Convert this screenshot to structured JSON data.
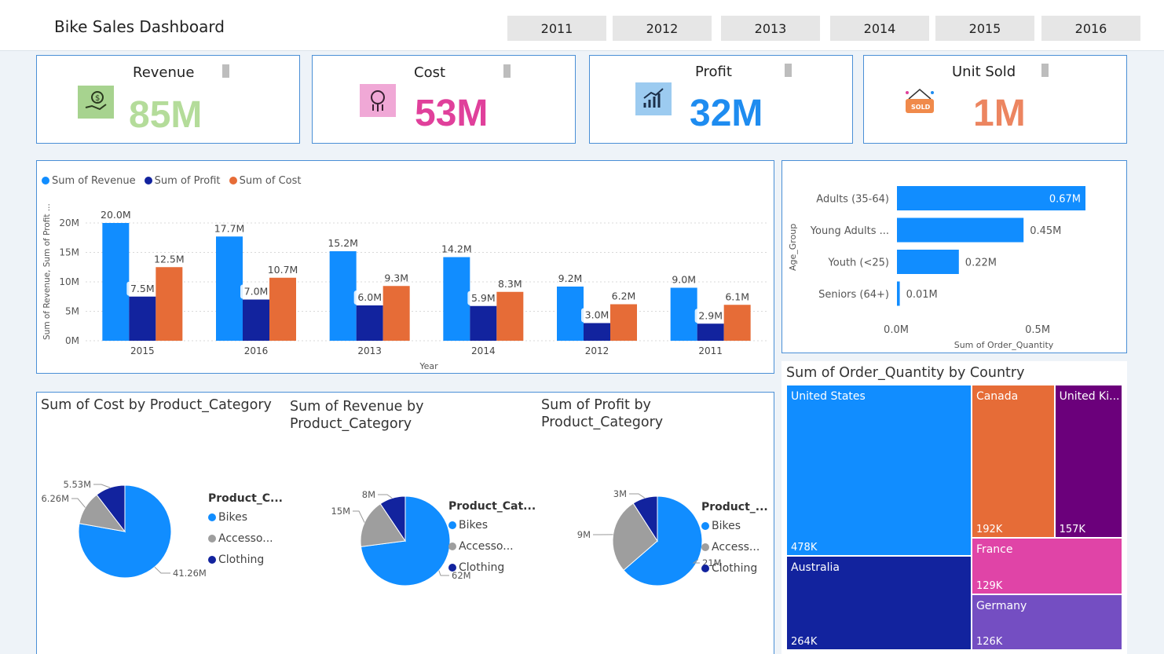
{
  "header": {
    "title": "Bike Sales Dashboard",
    "years": [
      "2011",
      "2012",
      "2013",
      "2014",
      "2015",
      "2016"
    ]
  },
  "kpis": [
    {
      "label": "Revenue",
      "value": "85M",
      "color": "#b4dc9a",
      "icon": "money-hand-icon",
      "icon_bg": "#a7d38f"
    },
    {
      "label": "Cost",
      "value": "53M",
      "color": "#e0409b",
      "icon": "coin-cost-icon",
      "icon_bg": "#f0a8d6"
    },
    {
      "label": "Profit",
      "value": "32M",
      "color": "#1e8cf0",
      "icon": "profit-chart-icon",
      "icon_bg": "#9ccbf0"
    },
    {
      "label": "Unit Sold",
      "value": "1M",
      "color": "#ec8560",
      "icon": "sold-tag-icon",
      "icon_bg": "#ffffff"
    }
  ],
  "chart_data": [
    {
      "type": "bar",
      "title": "",
      "legend": [
        "Sum of Revenue",
        "Sum of Profit",
        "Sum of Cost"
      ],
      "xlabel": "Year",
      "ylabel": "Sum of Revenue, Sum of Profit ...",
      "categories": [
        "2015",
        "2016",
        "2013",
        "2014",
        "2012",
        "2011"
      ],
      "ylim": [
        0,
        20000000
      ],
      "yticks": [
        "0M",
        "5M",
        "10M",
        "15M",
        "20M"
      ],
      "series": [
        {
          "name": "Sum of Revenue",
          "color": "#118dff",
          "values": [
            20.0,
            17.7,
            15.2,
            14.2,
            9.2,
            9.0
          ],
          "labels": [
            "20.0M",
            "17.7M",
            "15.2M",
            "14.2M",
            "9.2M",
            "9.0M"
          ]
        },
        {
          "name": "Sum of Profit",
          "color": "#12239e",
          "values": [
            7.5,
            7.0,
            6.0,
            5.9,
            3.0,
            2.9
          ],
          "labels": [
            "7.5M",
            "7.0M",
            "6.0M",
            "5.9M",
            "3.0M",
            "2.9M"
          ]
        },
        {
          "name": "Sum of Cost",
          "color": "#e66c37",
          "values": [
            12.5,
            10.7,
            9.3,
            8.3,
            6.2,
            6.1
          ],
          "labels": [
            "12.5M",
            "10.7M",
            "9.3M",
            "8.3M",
            "6.2M",
            "6.1M"
          ]
        }
      ]
    },
    {
      "type": "bar",
      "orientation": "horizontal",
      "xlabel": "Sum of Order_Quantity",
      "ylabel": "Age_Group",
      "categories": [
        "Adults (35-64)",
        "Young Adults ...",
        "Youth (<25)",
        "Seniors (64+)"
      ],
      "values": [
        0.67,
        0.45,
        0.22,
        0.01
      ],
      "labels": [
        "0.67M",
        "0.45M",
        "0.22M",
        "0.01M"
      ],
      "xticks": [
        "0.0M",
        "0.5M"
      ],
      "xlim": [
        0,
        0.67
      ],
      "color": "#118dff"
    },
    {
      "type": "pie",
      "title": "Sum of Cost by Product_Category",
      "legend_title": "Product_C...",
      "categories": [
        "Bikes",
        "Accesso...",
        "Clothing"
      ],
      "values": [
        41.26,
        6.26,
        5.53
      ],
      "labels": [
        "41.26M",
        "6.26M",
        "5.53M"
      ],
      "colors": [
        "#118dff",
        "#9e9e9e",
        "#12239e"
      ]
    },
    {
      "type": "pie",
      "title": "Sum of Revenue by Product_Category",
      "legend_title": "Product_Cat...",
      "categories": [
        "Bikes",
        "Accesso...",
        "Clothing"
      ],
      "values": [
        62,
        15,
        8
      ],
      "labels": [
        "62M",
        "15M",
        "8M"
      ],
      "colors": [
        "#118dff",
        "#9e9e9e",
        "#12239e"
      ]
    },
    {
      "type": "pie",
      "title": "Sum of Profit by Product_Category",
      "legend_title": "Product_...",
      "categories": [
        "Bikes",
        "Access...",
        "Clothing"
      ],
      "values": [
        21,
        9,
        3
      ],
      "labels": [
        "21M",
        "9M",
        "3M"
      ],
      "colors": [
        "#118dff",
        "#9e9e9e",
        "#12239e"
      ]
    },
    {
      "type": "treemap",
      "title": "Sum of Order_Quantity by Country",
      "items": [
        {
          "name": "United States",
          "label": "478K",
          "value": 478,
          "color": "#118dff"
        },
        {
          "name": "Australia",
          "label": "264K",
          "value": 264,
          "color": "#12239e"
        },
        {
          "name": "Canada",
          "label": "192K",
          "value": 192,
          "color": "#e66c37"
        },
        {
          "name": "United Ki...",
          "label": "157K",
          "value": 157,
          "color": "#6b007b"
        },
        {
          "name": "France",
          "label": "129K",
          "value": 129,
          "color": "#e044a7"
        },
        {
          "name": "Germany",
          "label": "126K",
          "value": 126,
          "color": "#744ec2"
        }
      ]
    }
  ]
}
